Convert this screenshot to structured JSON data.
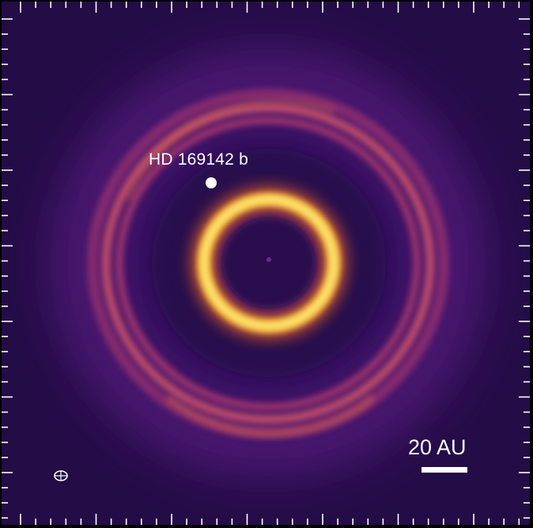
{
  "image": {
    "planet_label": "HD 169142 b",
    "scale_bar_label": "20 AU",
    "colors": {
      "background": "#2c0f52",
      "inner_ring": "#fff27a",
      "outer_ring": "#d66a4e",
      "annotation": "#ffffff"
    },
    "icons": {
      "planet_marker": "filled-circle",
      "beam": "ellipse-crosshair"
    }
  }
}
